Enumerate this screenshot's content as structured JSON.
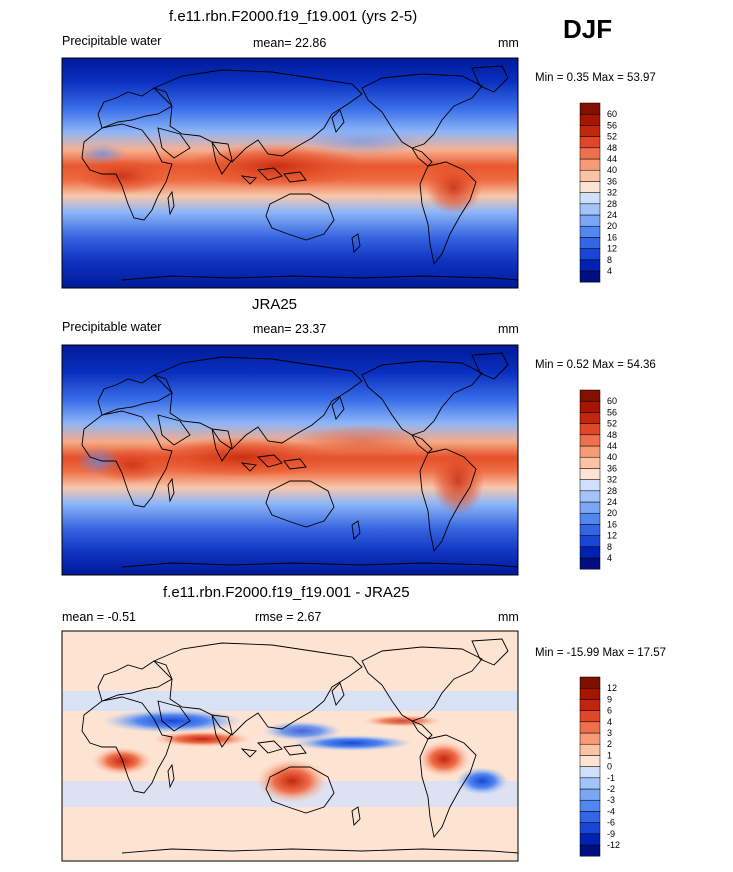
{
  "season_label": "DJF",
  "chart_data": [
    {
      "type": "heatmap",
      "title": "f.e11.rbn.F2000.f19_f19.001 (yrs 2-5)",
      "left_label": "Precipitable water",
      "center_label": "mean=  22.86",
      "units": "mm",
      "mean": 22.86,
      "min": 0.35,
      "max": 53.97,
      "minmax_text": "Min =   0.35 Max =  53.97",
      "colorbar_levels": [
        "4",
        "8",
        "12",
        "16",
        "20",
        "24",
        "28",
        "32",
        "36",
        "40",
        "44",
        "48",
        "52",
        "56",
        "60"
      ],
      "colors": [
        "#000e80",
        "#0022b3",
        "#1a45d6",
        "#3366e6",
        "#5287f0",
        "#7aa6f5",
        "#a3c4fa",
        "#cfe0fd",
        "#fde3d2",
        "#fcc2a4",
        "#f79b76",
        "#ef704c",
        "#e04628",
        "#c3260f",
        "#a51500",
        "#801000"
      ]
    },
    {
      "type": "heatmap",
      "title": "JRA25",
      "left_label": "Precipitable water",
      "center_label": "mean=  23.37",
      "units": "mm",
      "mean": 23.37,
      "min": 0.52,
      "max": 54.36,
      "minmax_text": "Min =   0.52 Max =  54.36",
      "colorbar_levels": [
        "4",
        "8",
        "12",
        "16",
        "20",
        "24",
        "28",
        "32",
        "36",
        "40",
        "44",
        "48",
        "52",
        "56",
        "60"
      ],
      "colors": [
        "#000e80",
        "#0022b3",
        "#1a45d6",
        "#3366e6",
        "#5287f0",
        "#7aa6f5",
        "#a3c4fa",
        "#cfe0fd",
        "#fde3d2",
        "#fcc2a4",
        "#f79b76",
        "#ef704c",
        "#e04628",
        "#c3260f",
        "#a51500",
        "#801000"
      ]
    },
    {
      "type": "heatmap",
      "title": "f.e11.rbn.F2000.f19_f19.001 - JRA25",
      "left_label": "mean =  -0.51",
      "center_label": "rmse =   2.67",
      "units": "mm",
      "mean": -0.51,
      "rmse": 2.67,
      "min": -15.99,
      "max": 17.57,
      "minmax_text": "Min = -15.99 Max =  17.57",
      "colorbar_levels": [
        "-12",
        "-9",
        "-6",
        "-4",
        "-3",
        "-2",
        "-1",
        "0",
        "1",
        "2",
        "3",
        "4",
        "6",
        "9",
        "12"
      ],
      "colors": [
        "#000e80",
        "#0022b3",
        "#1a45d6",
        "#3366e6",
        "#5287f0",
        "#7aa6f5",
        "#a3c4fa",
        "#cfe0fd",
        "#fde3d2",
        "#fcc2a4",
        "#f79b76",
        "#ef704c",
        "#e04628",
        "#c3260f",
        "#a51500",
        "#801000"
      ]
    }
  ]
}
